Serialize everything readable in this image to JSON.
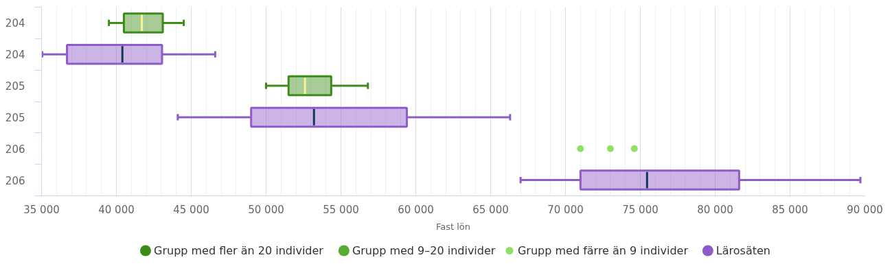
{
  "chart_data": {
    "type": "box",
    "orientation": "horizontal",
    "xlabel": "Fast lön",
    "categories": [
      "204",
      "204",
      "205",
      "205",
      "206",
      "206"
    ],
    "xlim": [
      35000,
      90000
    ],
    "xticks": [
      {
        "value": 35000,
        "label": "35 000"
      },
      {
        "value": 40000,
        "label": "40 000"
      },
      {
        "value": 45000,
        "label": "45 000"
      },
      {
        "value": 50000,
        "label": "50 000"
      },
      {
        "value": 55000,
        "label": "55 000"
      },
      {
        "value": 60000,
        "label": "60 000"
      },
      {
        "value": 65000,
        "label": "65 000"
      },
      {
        "value": 70000,
        "label": "70 000"
      },
      {
        "value": 75000,
        "label": "75 000"
      },
      {
        "value": 80000,
        "label": "80 000"
      },
      {
        "value": 85000,
        "label": "85 000"
      },
      {
        "value": 90000,
        "label": "90 000"
      }
    ],
    "grid": "x",
    "legend": "bottom",
    "series": [
      {
        "name": "Grupp med fler än 20 individer",
        "color": "#3d8c1a",
        "boxes": [
          {
            "low": 39500,
            "q1": 40500,
            "median": 41700,
            "q3": 43100,
            "high": 44500
          },
          null,
          {
            "low": 50000,
            "q1": 51500,
            "median": 52600,
            "q3": 54350,
            "high": 56800
          },
          null,
          null,
          null
        ]
      },
      {
        "name": "Grupp med 9–20 individer",
        "color": "#5aab34",
        "boxes": [
          null,
          null,
          null,
          null,
          null,
          null
        ]
      },
      {
        "name": "Grupp med färre än 9 individer",
        "type": "scatter",
        "color": "#8fe067",
        "marker": "circle",
        "values": [
          null,
          null,
          null,
          null,
          71000,
          null
        ]
      },
      {
        "type": "scatter",
        "color": "#8fe067",
        "marker": "circle",
        "values": [
          null,
          null,
          null,
          null,
          73000,
          null
        ]
      },
      {
        "type": "scatter",
        "color": "#8fe067",
        "marker": "circle",
        "values": [
          null,
          null,
          null,
          null,
          74600,
          null
        ]
      },
      {
        "name": "Lärosäten",
        "color": "#8e5cc8",
        "boxes": [
          null,
          {
            "low": 35050,
            "q1": 36700,
            "median": 40400,
            "q3": 43050,
            "high": 46600
          },
          null,
          {
            "low": 44100,
            "q1": 49000,
            "median": 53200,
            "q3": 59400,
            "high": 66300
          },
          null,
          {
            "low": 67000,
            "q1": 71000,
            "median": 75450,
            "q3": 81600,
            "high": 89700
          }
        ]
      }
    ]
  }
}
